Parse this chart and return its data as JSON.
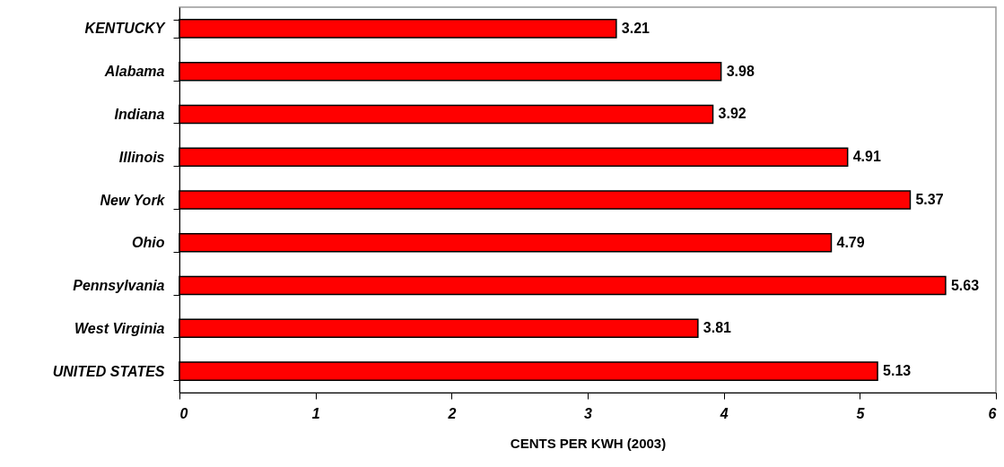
{
  "chart_data": {
    "type": "bar",
    "orientation": "horizontal",
    "xlabel": "CENTS PER KWH (2003)",
    "categories": [
      "KENTUCKY",
      "Alabama",
      "Indiana",
      "Illinois",
      "New York",
      "Ohio",
      "Pennsylvania",
      "West Virginia",
      "UNITED STATES"
    ],
    "values": [
      3.21,
      3.98,
      3.92,
      4.91,
      5.37,
      4.79,
      5.63,
      3.81,
      5.13
    ],
    "color": "#ff0000",
    "xlim": [
      0,
      6
    ],
    "xticks": [
      0,
      1,
      2,
      3,
      4,
      5,
      6
    ],
    "data_labels": true
  }
}
